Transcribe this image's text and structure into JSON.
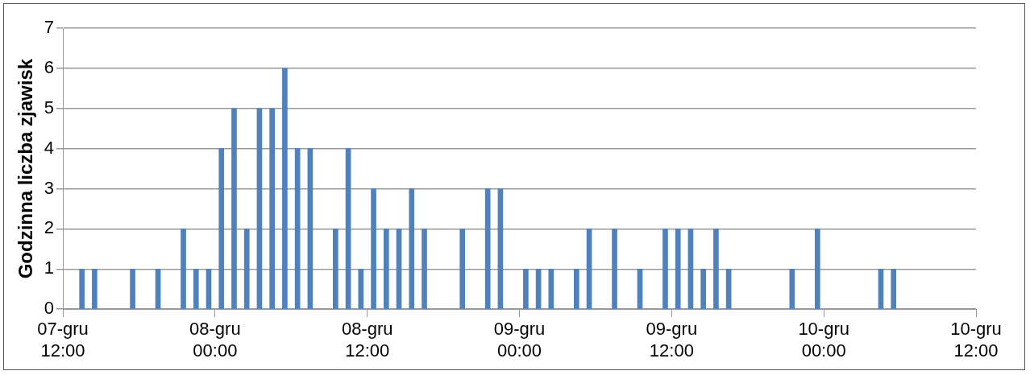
{
  "chart_data": {
    "type": "bar",
    "ylabel": "Godzinna liczba zjawisk",
    "color": "#4f81bd",
    "x": [
      "--12-07T13:30",
      "--12-07T14:30",
      "--12-07T17:30",
      "--12-07T19:30",
      "--12-07T21:30",
      "--12-07T22:30",
      "--12-07T23:30",
      "--12-08T00:30",
      "--12-08T01:30",
      "--12-08T02:30",
      "--12-08T03:30",
      "--12-08T04:30",
      "--12-08T05:30",
      "--12-08T06:30",
      "--12-08T07:30",
      "--12-08T09:30",
      "--12-08T10:30",
      "--12-08T11:30",
      "--12-08T12:30",
      "--12-08T13:30",
      "--12-08T14:30",
      "--12-08T15:30",
      "--12-08T16:30",
      "--12-08T19:30",
      "--12-08T21:30",
      "--12-08T22:30",
      "--12-09T00:30",
      "--12-09T01:30",
      "--12-09T02:30",
      "--12-09T04:30",
      "--12-09T05:30",
      "--12-09T07:30",
      "--12-09T09:30",
      "--12-09T11:30",
      "--12-09T12:30",
      "--12-09T13:30",
      "--12-09T14:30",
      "--12-09T15:30",
      "--12-09T16:30",
      "--12-09T21:30",
      "--12-09T23:30",
      "--12-10T04:30",
      "--12-10T05:30"
    ],
    "values": [
      1,
      1,
      1,
      1,
      2,
      1,
      1,
      4,
      5,
      2,
      5,
      5,
      6,
      4,
      4,
      2,
      4,
      1,
      3,
      2,
      2,
      3,
      2,
      2,
      3,
      3,
      1,
      1,
      1,
      1,
      2,
      2,
      1,
      2,
      2,
      2,
      1,
      2,
      1,
      1,
      2,
      1,
      1
    ],
    "xlim": [
      "--12-07T12:00",
      "--12-10T12:00"
    ],
    "xticks": [
      {
        "value": "--12-07T12:00",
        "label": "07-gru 12:00"
      },
      {
        "value": "--12-08T00:00",
        "label": "08-gru 00:00"
      },
      {
        "value": "--12-08T12:00",
        "label": "08-gru 12:00"
      },
      {
        "value": "--12-09T00:00",
        "label": "09-gru 00:00"
      },
      {
        "value": "--12-09T12:00",
        "label": "09-gru 12:00"
      },
      {
        "value": "--12-10T00:00",
        "label": "10-gru 00:00"
      },
      {
        "value": "--12-10T12:00",
        "label": "10-gru 12:00"
      }
    ],
    "ylim": [
      0,
      7
    ],
    "yticks": [
      0,
      1,
      2,
      3,
      4,
      5,
      6,
      7
    ],
    "grid": "y",
    "legend": false
  }
}
